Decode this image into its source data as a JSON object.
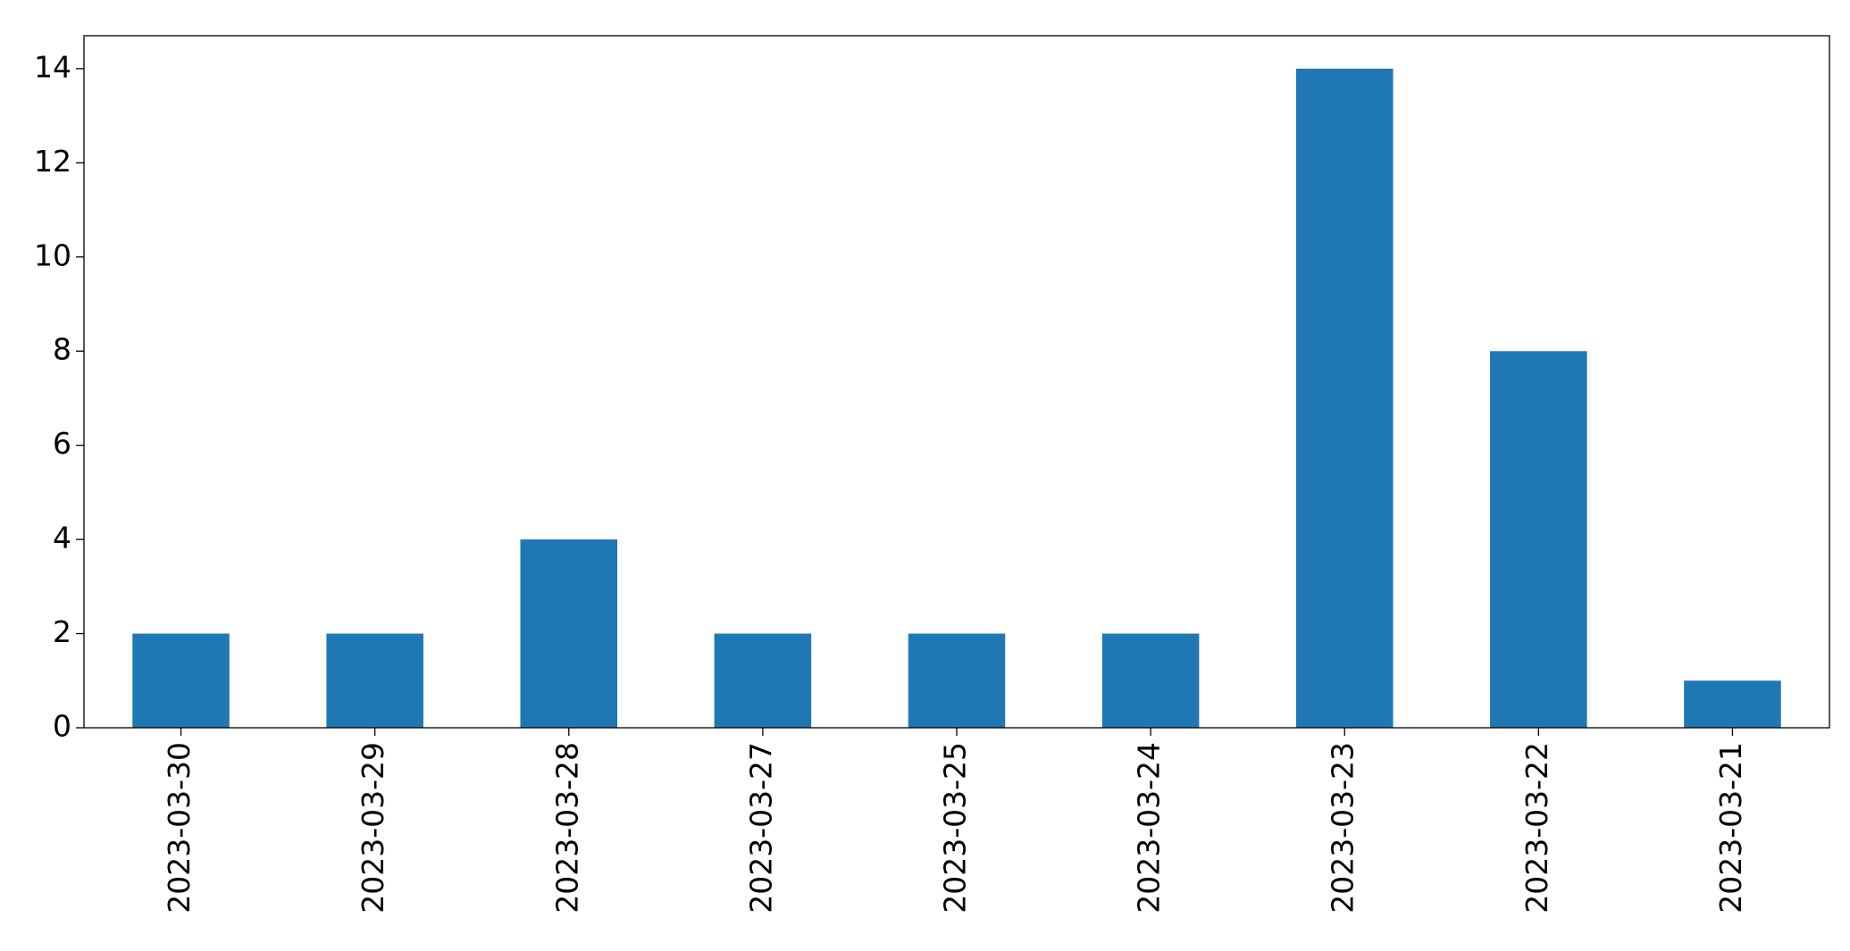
{
  "chart_data": {
    "type": "bar",
    "title": "",
    "xlabel": "",
    "ylabel": "",
    "categories": [
      "2023-03-30",
      "2023-03-29",
      "2023-03-28",
      "2023-03-27",
      "2023-03-25",
      "2023-03-24",
      "2023-03-23",
      "2023-03-22",
      "2023-03-21"
    ],
    "values": [
      2,
      2,
      4,
      2,
      2,
      2,
      14,
      8,
      1
    ],
    "ylim": [
      0,
      14.7
    ],
    "yticks": [
      0,
      2,
      4,
      6,
      8,
      10,
      12,
      14
    ],
    "grid": false,
    "legend": "none",
    "bar_color": "#1f77b4",
    "axis_color": "#000000"
  }
}
